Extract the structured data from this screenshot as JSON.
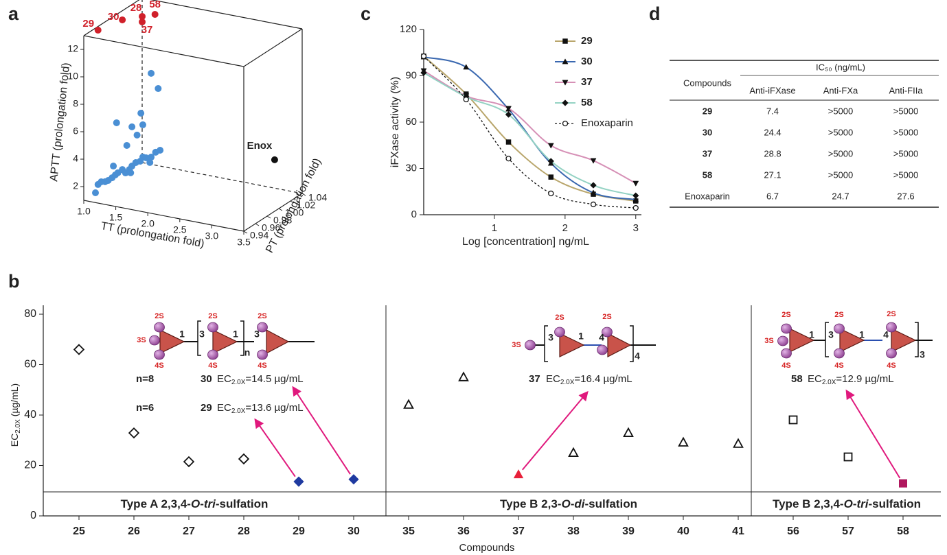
{
  "chart_data": [
    {
      "type": "scatter3d",
      "panel_label": "a",
      "xlabel": "TT (prolongation fold)",
      "ylabel": "PT (prolongation fold)",
      "zlabel": "APTT (prolongation fold)",
      "xlim": [
        1,
        3.5
      ],
      "ylim": [
        0.94,
        1.04
      ],
      "zlim": [
        1,
        13
      ],
      "xticks": [
        {
          "value": 1,
          "label": "1.0"
        },
        1.5,
        {
          "value": 2,
          "label": "2.0"
        },
        2.5,
        {
          "value": 3,
          "label": "3.0"
        },
        3.5
      ],
      "yticks": [
        0.94,
        0.96,
        0.98,
        {
          "value": 1,
          "label": "1.00"
        },
        1.02,
        1.04
      ],
      "zticks": [
        2,
        4,
        6,
        8,
        10,
        12
      ],
      "series": [
        {
          "color": "#4a8fd4",
          "x": [
            1.0,
            1.04,
            1.09,
            1.15,
            1.2,
            1.26,
            1.31,
            1.35,
            1.42,
            1.47,
            1.53,
            1.57,
            1.63,
            1.7,
            1.74,
            1.79,
            1.87,
            1.94,
            2.01,
            1.85,
            1.55,
            1.49,
            1.65,
            1.33,
            1.57,
            1.71,
            1.98,
            1.87,
            1.28,
            1.74
          ],
          "y": [
            0.96,
            0.96,
            0.96,
            0.96,
            0.96,
            0.96,
            0.96,
            0.96,
            0.96,
            0.96,
            0.96,
            0.96,
            0.96,
            0.96,
            0.96,
            0.96,
            0.96,
            0.96,
            0.96,
            0.96,
            0.96,
            0.96,
            0.96,
            0.96,
            0.96,
            0.96,
            0.96,
            0.96,
            0.96,
            0.96
          ],
          "z": [
            1.0,
            1.64,
            1.88,
            1.94,
            2.08,
            2.33,
            2.58,
            2.77,
            3.07,
            2.87,
            3.17,
            3.46,
            3.77,
            3.93,
            4.27,
            4.26,
            4.38,
            4.8,
            5.01,
            3.97,
            2.95,
            4.89,
            5.79,
            6.4,
            6.32,
            7.44,
            9.48,
            10.49,
            3.2,
            6.62
          ]
        },
        {
          "color": "#d0202a",
          "x": [
            1.04,
            1.42,
            1.73,
            1.73,
            1.93
          ],
          "y": [
            0.96,
            0.96,
            0.96,
            0.96,
            0.96
          ],
          "z": [
            12.89,
            13.98,
            14.51,
            14.11,
            14.84
          ],
          "point_labels": [
            "29",
            "30",
            "28",
            "37",
            "58"
          ]
        },
        {
          "color": "#111111",
          "x": [
            3.07
          ],
          "y": [
            1.04
          ],
          "z": [
            3.07
          ],
          "point_labels": [
            "Enox"
          ]
        }
      ]
    },
    {
      "type": "line",
      "panel_label": "c",
      "xlabel": "Log [concentration] ng/mL",
      "ylabel": "iFXase activity (%)",
      "xlim": [
        0,
        3.08
      ],
      "ylim": [
        0,
        120
      ],
      "xticks": [
        1,
        2,
        3
      ],
      "yticks": [
        0,
        30,
        60,
        90,
        120
      ],
      "x": [
        0,
        0.6,
        1.2,
        1.8,
        2.4,
        3
      ],
      "series": [
        {
          "name": "29",
          "color": "#b9a66c",
          "marker": "square",
          "values": [
            102.7,
            78.2,
            47.1,
            24.4,
            13.3,
            8.9
          ]
        },
        {
          "name": "30",
          "color": "#3a68b0",
          "marker": "triangle",
          "values": [
            102.2,
            95.6,
            68.4,
            33.3,
            14.2,
            9.8
          ]
        },
        {
          "name": "37",
          "color": "#d690b6",
          "marker": "triangle-down",
          "values": [
            93.3,
            77,
            68.9,
            44.9,
            35.1,
            20.4
          ]
        },
        {
          "name": "58",
          "color": "#93d2c3",
          "marker": "diamond",
          "values": [
            92,
            76.4,
            64.9,
            34.7,
            19.1,
            12.4
          ]
        },
        {
          "name": "Enoxaparin",
          "color": "#111111",
          "marker": "circle-open",
          "dashed": true,
          "values": [
            102.7,
            74.7,
            36.4,
            13.8,
            6.7,
            4.4
          ]
        }
      ]
    },
    {
      "type": "scatter",
      "panel_label": "b",
      "xlabel": "Compounds",
      "ylabel_parts": [
        "EC",
        "2.0X",
        " (µg/mL)"
      ],
      "ylim": [
        0,
        80
      ],
      "yticks": [
        0,
        20,
        40,
        60,
        80
      ],
      "groups": [
        {
          "label_parts": [
            {
              "text": "Type A 2,3,4-"
            },
            {
              "text": "O",
              "italic": true
            },
            {
              "text": "-"
            },
            {
              "text": "tri",
              "italic": true
            },
            {
              "text": "-sulfation"
            }
          ],
          "marker": "diamond",
          "categories": [
            "25",
            "26",
            "27",
            "28",
            "29",
            "30"
          ],
          "values": [
            66,
            32.9,
            21.5,
            22.6,
            13.6,
            14.5
          ],
          "fills": [
            "none",
            "none",
            "none",
            "none",
            "#1f3aa0",
            "#1f3aa0"
          ],
          "annotations": [
            {
              "n": "n=8",
              "compound": "30",
              "ec": "EC",
              "sub": "2.0X",
              "text": "=14.5 µg/mL"
            },
            {
              "n": "n=6",
              "compound": "29",
              "ec": "EC",
              "sub": "2.0X",
              "text": "=13.6 µg/mL"
            }
          ]
        },
        {
          "label_parts": [
            {
              "text": "Type B 2,3-"
            },
            {
              "text": "O",
              "italic": true
            },
            {
              "text": "-"
            },
            {
              "text": "di",
              "italic": true
            },
            {
              "text": "-sulfation"
            }
          ],
          "marker": "triangle",
          "categories": [
            "35",
            "36",
            "37",
            "38",
            "39",
            "40",
            "41"
          ],
          "values": [
            44.1,
            55,
            16.4,
            25,
            32.9,
            29.1,
            28.6
          ],
          "fills": [
            "none",
            "none",
            "#e8203a",
            "none",
            "none",
            "none",
            "none"
          ],
          "annotations": [
            {
              "compound": "37",
              "ec": "EC",
              "sub": "2.0X",
              "text": "=16.4 µg/mL"
            }
          ]
        },
        {
          "label_parts": [
            {
              "text": "Type B 2,3,4-"
            },
            {
              "text": "O",
              "italic": true
            },
            {
              "text": "-"
            },
            {
              "text": "tri",
              "italic": true
            },
            {
              "text": "-sulfation"
            }
          ],
          "marker": "square",
          "categories": [
            "56",
            "57",
            "58"
          ],
          "values": [
            38.1,
            23.4,
            12.9
          ],
          "fills": [
            "none",
            "none",
            "#b0185e"
          ],
          "annotations": [
            {
              "compound": "58",
              "ec": "EC",
              "sub": "2.0X",
              "text": "=12.9 µg/mL"
            }
          ]
        }
      ],
      "schemes": [
        {
          "labels": [
            "2S",
            "3S",
            "4S",
            "1",
            "3",
            "2S",
            "4S",
            "1",
            "n",
            "3",
            "2S",
            "4S"
          ]
        },
        {
          "labels": [
            "3S",
            "3",
            "2S",
            "1",
            "4",
            "2S",
            "4"
          ]
        },
        {
          "labels": [
            "2S",
            "3S",
            "4S",
            "1",
            "3",
            "2S",
            "4S",
            "1",
            "4",
            "2S",
            "4S",
            "3"
          ]
        }
      ]
    }
  ],
  "table": {
    "panel_label": "d",
    "header": [
      "Compounds",
      "IC₅₀ (ng/mL)"
    ],
    "subheader": [
      "Anti-iFXase",
      "Anti-FXa",
      "Anti-FIIa"
    ],
    "rows": [
      [
        "29",
        "7.4",
        ">5000",
        ">5000"
      ],
      [
        "30",
        "24.4",
        ">5000",
        ">5000"
      ],
      [
        "37",
        "28.8",
        ">5000",
        ">5000"
      ],
      [
        "58",
        "27.1",
        ">5000",
        ">5000"
      ],
      [
        "Enoxaparin",
        "6.7",
        "24.7",
        "27.6"
      ]
    ]
  }
}
